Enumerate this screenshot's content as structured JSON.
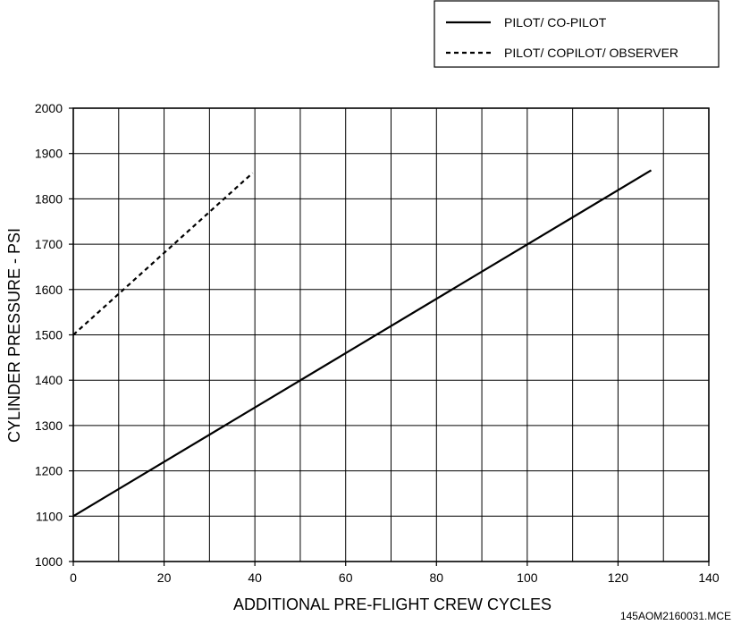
{
  "chart_data": {
    "type": "line",
    "title": "",
    "xlabel": "ADDITIONAL PRE-FLIGHT CREW CYCLES",
    "ylabel": "CYLINDER PRESSURE - PSI",
    "xlim": [
      0,
      140
    ],
    "ylim": [
      1000,
      2000
    ],
    "x_ticks": [
      0,
      20,
      40,
      60,
      80,
      100,
      120,
      140
    ],
    "y_ticks": [
      1000,
      1100,
      1200,
      1300,
      1400,
      1500,
      1600,
      1700,
      1800,
      1900,
      2000
    ],
    "x_grid_step": 10,
    "y_grid_step": 100,
    "grid": true,
    "legend_position": "top-right, above plot",
    "series": [
      {
        "name": "PILOT/ CO-PILOT",
        "style": "solid",
        "x": [
          0,
          127.3
        ],
        "y": [
          1100,
          1863
        ]
      },
      {
        "name": "PILOT/ COPILOT/ OBSERVER",
        "style": "dashed",
        "x": [
          0,
          39.5
        ],
        "y": [
          1500,
          1857
        ]
      }
    ]
  },
  "drawing_code": "145AOM2160031.MCE"
}
